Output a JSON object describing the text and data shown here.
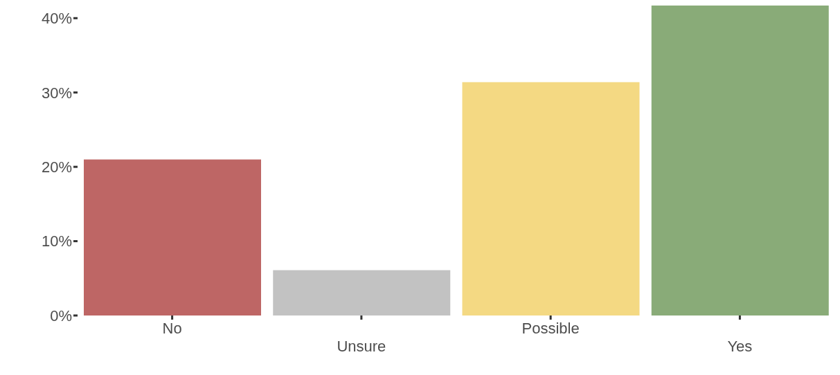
{
  "chart_data": {
    "type": "bar",
    "categories": [
      "No",
      "Unsure",
      "Possible",
      "Yes"
    ],
    "values": [
      21.0,
      6.1,
      31.4,
      41.7
    ],
    "colors": [
      "#be6665",
      "#c2c2c2",
      "#f4d983",
      "#89ab78"
    ],
    "ylim": [
      0,
      41.7
    ],
    "yticks": [
      {
        "value": 0,
        "label": "0%"
      },
      {
        "value": 10,
        "label": "10%"
      },
      {
        "value": 20,
        "label": "20%"
      },
      {
        "value": 30,
        "label": "30%"
      },
      {
        "value": 40,
        "label": "40%"
      }
    ],
    "grid": false
  }
}
